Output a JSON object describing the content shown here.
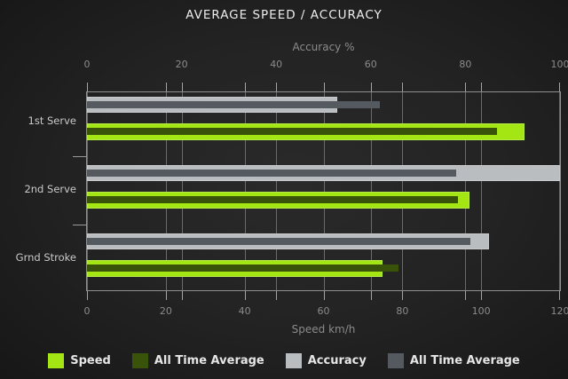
{
  "title": "AVERAGE SPEED / ACCURACY",
  "chart_data": {
    "type": "bar",
    "orientation": "horizontal",
    "categories": [
      "1st Serve",
      "2nd Serve",
      "Grnd Stroke"
    ],
    "series": [
      {
        "name": "Speed",
        "axis": "bottom",
        "color": "#a3e614",
        "border": "#7fb30d",
        "values": [
          111,
          97,
          75
        ]
      },
      {
        "name": "All Time Average",
        "axis": "bottom",
        "color": "#3a530b",
        "border": "#314608",
        "values": [
          104,
          94,
          79
        ]
      },
      {
        "name": "Accuracy",
        "axis": "top",
        "color": "#b9bdc0",
        "border": "#cdd1d4",
        "values": [
          53,
          100,
          85
        ]
      },
      {
        "name": "All Time Average",
        "axis": "top",
        "color": "#545a60",
        "border": "#545a60",
        "values": [
          62,
          78,
          81
        ]
      }
    ],
    "axes": {
      "top": {
        "label": "Accuracy %",
        "min": 0,
        "max": 100,
        "ticks": [
          0,
          20,
          40,
          60,
          80,
          100
        ]
      },
      "bottom": {
        "label": "Speed km/h",
        "min": 0,
        "max": 120,
        "ticks": [
          0,
          20,
          40,
          60,
          80,
          100,
          120
        ]
      }
    },
    "grid": true,
    "legend_position": "bottom",
    "background": "#1e1e1e"
  }
}
